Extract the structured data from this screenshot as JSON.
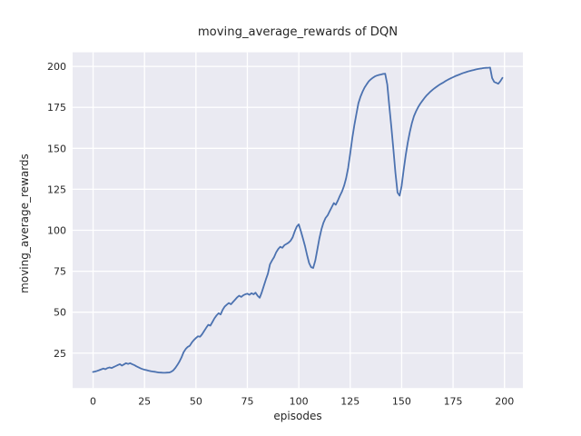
{
  "style": {
    "figure_bg": "#ffffff",
    "axes_bg": "#EAEAF2",
    "grid_color": "#ffffff",
    "text_color": "#262626",
    "line_color": "#4C72B0"
  },
  "chart_data": {
    "type": "line",
    "title": "moving_average_rewards of DQN",
    "xlabel": "episodes",
    "ylabel": "moving_average_rewards",
    "legend_position": "none",
    "grid": true,
    "x_ticks": [
      0,
      25,
      50,
      75,
      100,
      125,
      150,
      175,
      200
    ],
    "y_ticks": [
      25,
      50,
      75,
      100,
      125,
      150,
      175,
      200
    ],
    "xlim": [
      -9.95,
      208.95
    ],
    "ylim": [
      3.7,
      208.6
    ],
    "series": [
      {
        "name": "moving_average_rewards",
        "color": "#4C72B0",
        "x_start": 0,
        "x_step": 1,
        "y": [
          13.5,
          13.8,
          14.2,
          14.6,
          15.1,
          15.6,
          15.2,
          15.9,
          16.3,
          15.9,
          16.5,
          17.1,
          17.7,
          18.3,
          17.4,
          18.1,
          18.9,
          18.4,
          18.9,
          18.3,
          17.7,
          17.0,
          16.4,
          15.8,
          15.3,
          14.9,
          14.6,
          14.3,
          14.0,
          13.8,
          13.6,
          13.4,
          13.2,
          13.1,
          13.0,
          13.0,
          13.1,
          13.2,
          13.6,
          14.5,
          16.0,
          17.8,
          19.9,
          22.5,
          25.5,
          27.5,
          28.8,
          29.5,
          31.5,
          33.0,
          34.2,
          35.3,
          35.0,
          36.5,
          38.5,
          40.5,
          42.3,
          41.8,
          44.0,
          46.2,
          48.0,
          49.4,
          48.6,
          51.5,
          53.5,
          54.6,
          55.6,
          54.8,
          56.2,
          57.6,
          59.0,
          60.1,
          59.3,
          60.3,
          60.9,
          61.3,
          60.6,
          61.6,
          60.9,
          61.9,
          60.0,
          58.8,
          62.0,
          66.0,
          70.0,
          73.5,
          79.2,
          81.6,
          83.6,
          86.5,
          88.6,
          89.9,
          89.3,
          90.9,
          91.6,
          92.4,
          93.6,
          95.6,
          99.2,
          102.2,
          103.6,
          99.5,
          95.0,
          90.5,
          85.0,
          80.0,
          77.5,
          77.0,
          81.5,
          88.0,
          95.0,
          100.6,
          104.6,
          107.5,
          109.1,
          111.6,
          114.1,
          116.6,
          115.6,
          118.2,
          121.1,
          123.6,
          127.1,
          131.6,
          138.0,
          147.0,
          156.0,
          164.0,
          171.0,
          177.5,
          181.5,
          184.6,
          187.1,
          189.1,
          190.9,
          192.1,
          193.1,
          193.9,
          194.4,
          194.8,
          195.1,
          195.4,
          195.5,
          189.0,
          176.0,
          163.0,
          149.0,
          135.0,
          123.0,
          121.1,
          127.0,
          137.0,
          146.1,
          153.6,
          160.1,
          165.6,
          169.6,
          172.6,
          175.1,
          177.1,
          178.9,
          180.6,
          182.1,
          183.4,
          184.6,
          185.7,
          186.7,
          187.6,
          188.5,
          189.3,
          190.0,
          190.8,
          191.5,
          192.2,
          192.8,
          193.4,
          194.0,
          194.5,
          195.0,
          195.5,
          196.0,
          196.4,
          196.8,
          197.2,
          197.5,
          197.8,
          198.1,
          198.4,
          198.6,
          198.8,
          199.0,
          199.1,
          199.2,
          199.3,
          192.9,
          190.5,
          190.0,
          189.4,
          191.0,
          193.0
        ]
      }
    ]
  }
}
